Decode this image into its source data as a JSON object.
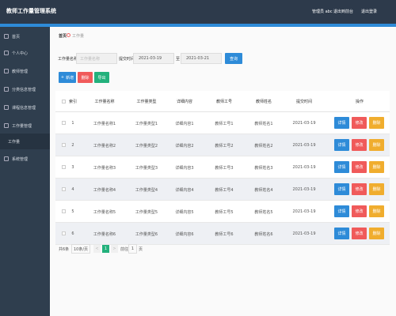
{
  "header": {
    "title": "教师工作量管理系统",
    "user": "管理员 abc",
    "links": [
      "退出到前台",
      "退出登录"
    ]
  },
  "sidebar": {
    "items": [
      "首页",
      "个人中心",
      "教师管理",
      "分类信息管理",
      "课程信息管理",
      "工作量管理",
      "工作量",
      "系统管理"
    ]
  },
  "breadcrumb": [
    "首页",
    "工作量"
  ],
  "search": {
    "name_label": "工作量名称",
    "name_placeholder": "工作量名称",
    "time_label": "提交时间",
    "start": "2021-03-19",
    "to": "至",
    "end": "2021-03-21",
    "button": "查询"
  },
  "toolbar": [
    "新增",
    "删除",
    "导出"
  ],
  "table": {
    "columns": [
      "索引",
      "工作量名称",
      "工作量类型",
      "详细内容",
      "教师工号",
      "教师姓名",
      "提交时间",
      "操作"
    ],
    "rows": [
      [
        1,
        "工作量名称1",
        "工作量类型1",
        "详细内容1",
        "教师工号1",
        "教师姓名1",
        "2021-03-19"
      ],
      [
        2,
        "工作量名称2",
        "工作量类型2",
        "详细内容2",
        "教师工号2",
        "教师姓名2",
        "2021-03-19"
      ],
      [
        3,
        "工作量名称3",
        "工作量类型3",
        "详细内容3",
        "教师工号3",
        "教师姓名3",
        "2021-03-19"
      ],
      [
        4,
        "工作量名称4",
        "工作量类型4",
        "详细内容4",
        "教师工号4",
        "教师姓名4",
        "2021-03-19"
      ],
      [
        5,
        "工作量名称5",
        "工作量类型5",
        "详细内容5",
        "教师工号5",
        "教师姓名5",
        "2021-03-19"
      ],
      [
        6,
        "工作量名称6",
        "工作量类型6",
        "详细内容6",
        "教师工号6",
        "教师姓名6",
        "2021-03-19"
      ]
    ],
    "actions": [
      "详情",
      "修改",
      "删除"
    ]
  },
  "pagination": {
    "total": "共6条",
    "page_size": "10条/页",
    "prev": "<",
    "current": "1",
    "next": ">",
    "goto": "前往",
    "goto_page": "1",
    "page_unit": "页"
  }
}
